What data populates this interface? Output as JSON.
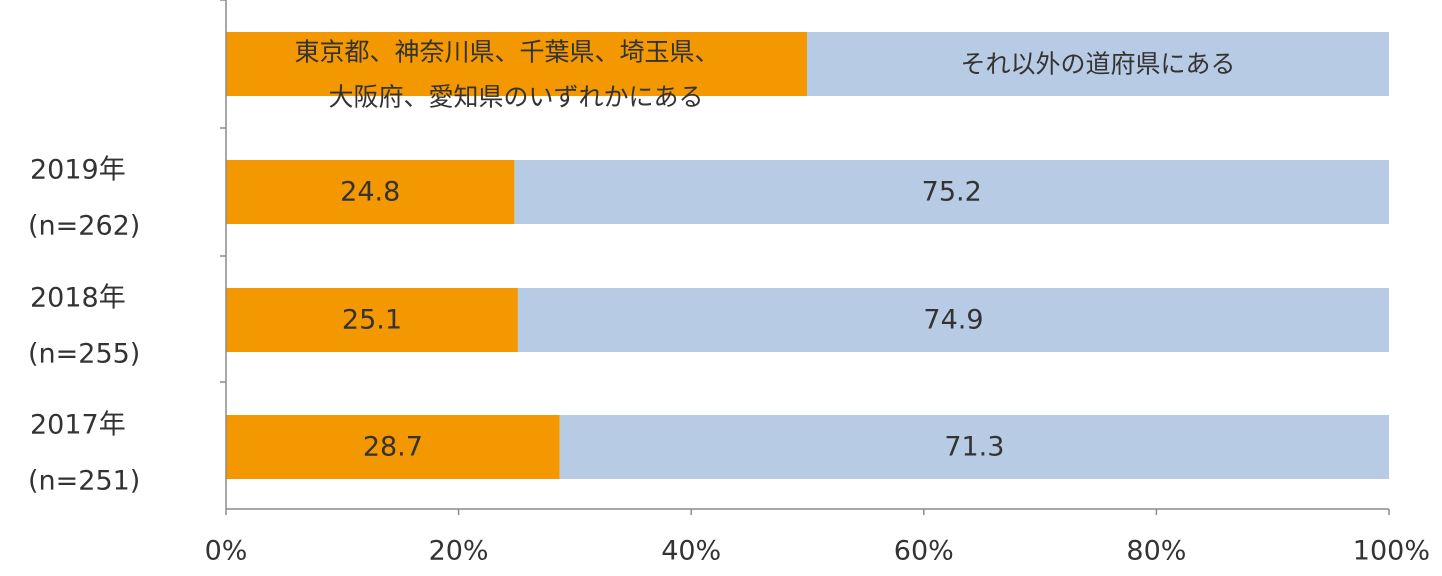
{
  "chart_data": {
    "type": "bar",
    "orientation": "horizontal",
    "stacked": true,
    "legend_position": "top",
    "legend": {
      "orange_lines": [
        "東京都、神奈川県、千葉県、埼玉県、",
        "大阪府、愛知県のいずれかにある"
      ],
      "blue": "それ以外の道府県にある"
    },
    "categories": [
      {
        "year": "2019年",
        "n": "(n=262)"
      },
      {
        "year": "2018年",
        "n": "(n=255)"
      },
      {
        "year": "2017年",
        "n": "(n=251)"
      }
    ],
    "series": [
      {
        "name": "東京都、神奈川県、千葉県、埼玉県、大阪府、愛知県のいずれかにある",
        "color": "#F39800",
        "values": [
          24.8,
          25.1,
          28.7
        ]
      },
      {
        "name": "それ以外の道府県にある",
        "color": "#B8CBE4",
        "values": [
          75.2,
          74.9,
          71.3
        ]
      }
    ],
    "x_ticks": [
      "0%",
      "20%",
      "40%",
      "60%",
      "80%",
      "100%"
    ],
    "xlim": [
      0,
      100
    ],
    "grid": false
  }
}
